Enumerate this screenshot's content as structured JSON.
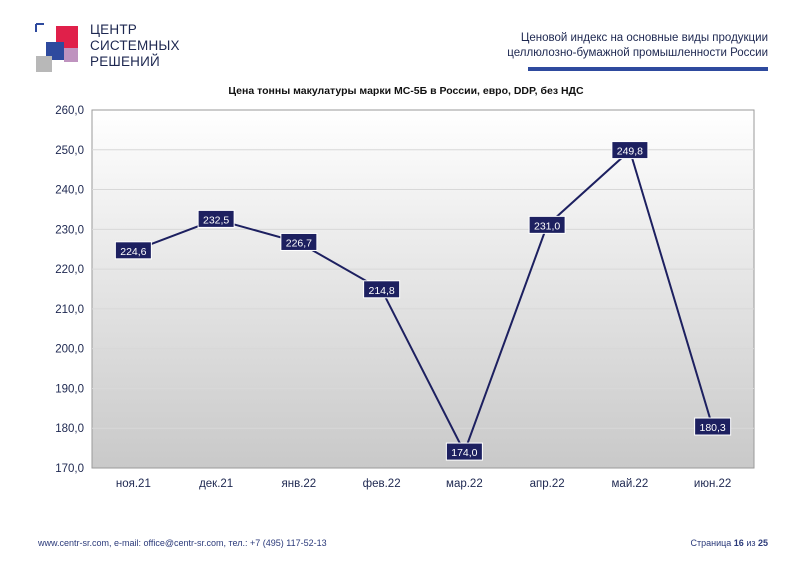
{
  "brand": {
    "line1": "ЦЕНТР",
    "line2": "СИСТЕМНЫХ",
    "line3": "РЕШЕНИЙ",
    "colors": {
      "red": "#e0204a",
      "blue": "#2e4a9e",
      "grey": "#a0a0a0"
    }
  },
  "header": {
    "line1": "Ценовой индекс на основные виды продукции",
    "line2": "целлюлозно-бумажной промышленности России"
  },
  "chart_data": {
    "type": "line",
    "title": "Цена тонны макулатуры марки МС-5Б в России, евро, DDP, без НДС",
    "categories": [
      "ноя.21",
      "дек.21",
      "янв.22",
      "фев.22",
      "мар.22",
      "апр.22",
      "май.22",
      "июн.22"
    ],
    "values": [
      224.6,
      232.5,
      226.7,
      214.8,
      174.0,
      231.0,
      249.8,
      180.3
    ],
    "value_labels": [
      "224,6",
      "232,5",
      "226,7",
      "214,8",
      "174,0",
      "231,0",
      "249,8",
      "180,3"
    ],
    "y_ticks": [
      "170,0",
      "180,0",
      "190,0",
      "200,0",
      "210,0",
      "220,0",
      "230,0",
      "240,0",
      "250,0",
      "260,0"
    ],
    "ylim": [
      170,
      260
    ],
    "ystep": 10,
    "grid": true,
    "line_color": "#1d2060",
    "label_bg": "#1d2060"
  },
  "footer": {
    "contacts": "www.centr-sr.com, e-mail: office@centr-sr.com, тел.: +7 (495) 117-52-13",
    "page_prefix": "Страница",
    "page_num": "16",
    "page_sep": "из",
    "page_total": "25"
  }
}
